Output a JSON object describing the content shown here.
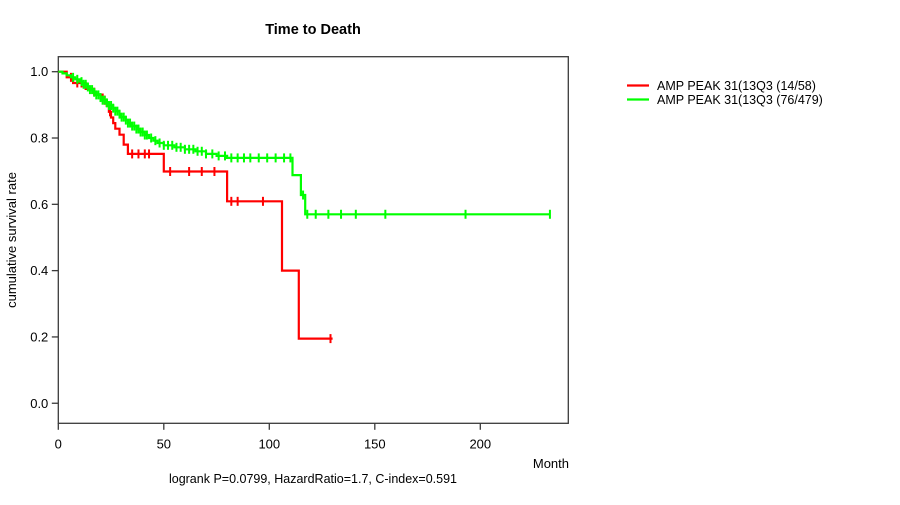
{
  "chart_data": {
    "type": "line",
    "subtype": "kaplan-meier-step",
    "title": "Time to Death",
    "xlabel": "Month",
    "ylabel": "cumulative survival rate",
    "caption": "logrank P=0.0799, HazardRatio=1.7, C-index=0.591",
    "x_ticks": [
      0,
      50,
      100,
      150,
      200
    ],
    "y_ticks": [
      "0.0",
      "0.2",
      "0.4",
      "0.6",
      "0.8",
      "1.0"
    ],
    "xlim": [
      0,
      242
    ],
    "ylim": [
      0.0,
      1.0
    ],
    "grid": false,
    "legend_position": "right-outside",
    "axis_color": "#3a3a3a",
    "series": [
      {
        "name": "AMP PEAK 31(13Q3 (14/58)",
        "color": "#ff0000",
        "steps": [
          [
            0,
            1.0
          ],
          [
            4,
            0.983
          ],
          [
            7,
            0.966
          ],
          [
            13,
            0.948
          ],
          [
            17,
            0.931
          ],
          [
            21,
            0.914
          ],
          [
            23,
            0.897
          ],
          [
            24,
            0.879
          ],
          [
            25,
            0.862
          ],
          [
            26,
            0.845
          ],
          [
            27,
            0.828
          ],
          [
            29,
            0.81
          ],
          [
            31,
            0.78
          ],
          [
            33,
            0.752
          ],
          [
            50,
            0.699
          ],
          [
            80,
            0.609
          ],
          [
            106,
            0.4
          ],
          [
            114,
            0.195
          ]
        ],
        "end_month": 130,
        "censor_months": [
          6,
          9,
          11,
          22,
          24.5,
          35,
          38,
          41,
          43,
          53,
          62,
          68,
          74,
          82,
          85,
          97,
          129
        ]
      },
      {
        "name": "AMP PEAK 31(13Q3 (76/479)",
        "color": "#00ff00",
        "steps": [
          [
            0,
            1.0
          ],
          [
            2,
            0.995
          ],
          [
            4,
            0.989
          ],
          [
            6,
            0.983
          ],
          [
            8,
            0.977
          ],
          [
            10,
            0.97
          ],
          [
            12,
            0.962
          ],
          [
            14,
            0.954
          ],
          [
            15,
            0.946
          ],
          [
            17,
            0.938
          ],
          [
            18,
            0.93
          ],
          [
            20,
            0.922
          ],
          [
            21,
            0.914
          ],
          [
            23,
            0.906
          ],
          [
            24,
            0.898
          ],
          [
            26,
            0.89
          ],
          [
            27,
            0.881
          ],
          [
            29,
            0.872
          ],
          [
            30,
            0.863
          ],
          [
            32,
            0.854
          ],
          [
            33,
            0.845
          ],
          [
            35,
            0.836
          ],
          [
            37,
            0.827
          ],
          [
            39,
            0.818
          ],
          [
            41,
            0.809
          ],
          [
            43,
            0.8
          ],
          [
            45,
            0.792
          ],
          [
            47,
            0.785
          ],
          [
            50,
            0.778
          ],
          [
            55,
            0.772
          ],
          [
            60,
            0.766
          ],
          [
            65,
            0.76
          ],
          [
            70,
            0.752
          ],
          [
            75,
            0.746
          ],
          [
            80,
            0.74
          ],
          [
            111,
            0.688
          ],
          [
            115,
            0.628
          ],
          [
            117,
            0.57
          ]
        ],
        "end_month": 233,
        "censor_months": [
          7,
          9,
          11,
          12,
          13,
          14,
          15,
          16,
          17,
          18,
          19,
          20,
          21,
          22,
          23,
          24,
          25,
          26,
          27,
          28,
          29,
          30,
          31,
          32,
          33,
          34,
          35,
          36,
          37,
          38,
          39,
          40,
          41,
          42,
          44,
          46,
          48,
          50,
          52,
          54,
          56,
          58,
          60,
          62,
          64,
          66,
          68,
          70,
          73,
          76,
          79,
          82,
          85,
          88,
          91,
          95,
          99,
          103,
          107,
          110,
          116,
          118,
          122,
          128,
          134,
          141,
          155,
          193,
          233
        ]
      }
    ]
  }
}
